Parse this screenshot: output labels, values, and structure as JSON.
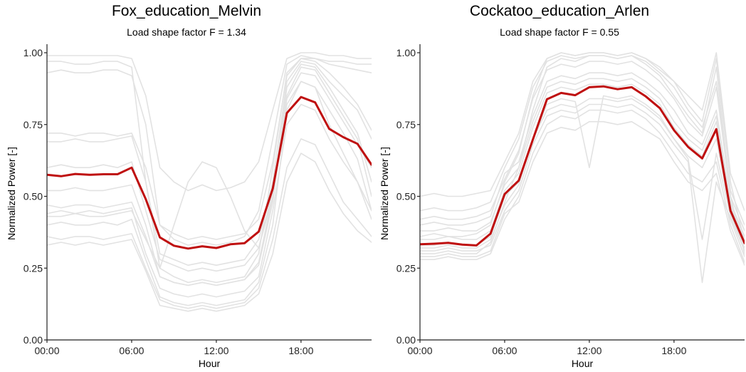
{
  "chart_data": [
    {
      "type": "line",
      "title": "Fox_education_Melvin",
      "subtitle": "Load shape factor F = 1.34",
      "xlabel": "Hour",
      "ylabel": "Normalized Power [-]",
      "xlim": [
        0,
        23
      ],
      "ylim": [
        0,
        1
      ],
      "x_ticks": [
        0,
        6,
        12,
        18
      ],
      "x_tick_labels": [
        "00:00",
        "06:00",
        "12:00",
        "18:00"
      ],
      "y_ticks": [
        0,
        0.25,
        0.5,
        0.75,
        1.0
      ],
      "y_tick_labels": [
        "0.00",
        "0.25",
        "0.50",
        "0.75",
        "1.00"
      ],
      "grid": false,
      "colors": {
        "mean": "#bf0f0f",
        "background": "#e2e2e2",
        "axis": "#222222"
      },
      "x": [
        0,
        1,
        2,
        3,
        4,
        5,
        6,
        7,
        8,
        9,
        10,
        11,
        12,
        13,
        14,
        15,
        16,
        17,
        18,
        19,
        20,
        21,
        22,
        23
      ],
      "series": [
        {
          "role": "mean",
          "values": [
            0.575,
            0.57,
            0.578,
            0.575,
            0.577,
            0.577,
            0.6,
            0.49,
            0.357,
            0.328,
            0.318,
            0.326,
            0.32,
            0.333,
            0.337,
            0.377,
            0.527,
            0.79,
            0.846,
            0.827,
            0.735,
            0.706,
            0.683,
            0.61
          ]
        },
        {
          "role": "background",
          "values": [
            0.97,
            0.97,
            0.96,
            0.96,
            0.97,
            0.97,
            0.95,
            0.55,
            0.25,
            0.22,
            0.2,
            0.21,
            0.2,
            0.21,
            0.22,
            0.3,
            0.6,
            0.93,
            0.98,
            0.98,
            0.97,
            0.97,
            0.96,
            0.96
          ]
        },
        {
          "role": "background",
          "values": [
            0.93,
            0.94,
            0.93,
            0.93,
            0.94,
            0.94,
            0.92,
            0.75,
            0.4,
            0.35,
            0.33,
            0.34,
            0.33,
            0.34,
            0.36,
            0.45,
            0.7,
            0.96,
            0.99,
            0.98,
            0.96,
            0.95,
            0.94,
            0.93
          ]
        },
        {
          "role": "background",
          "values": [
            0.44,
            0.45,
            0.44,
            0.45,
            0.44,
            0.45,
            0.46,
            0.3,
            0.18,
            0.16,
            0.15,
            0.16,
            0.15,
            0.16,
            0.17,
            0.22,
            0.45,
            0.75,
            0.82,
            0.8,
            0.7,
            0.62,
            0.55,
            0.45
          ]
        },
        {
          "role": "background",
          "values": [
            0.4,
            0.41,
            0.4,
            0.4,
            0.41,
            0.4,
            0.42,
            0.28,
            0.15,
            0.13,
            0.12,
            0.13,
            0.12,
            0.13,
            0.14,
            0.2,
            0.4,
            0.8,
            0.9,
            0.88,
            0.75,
            0.65,
            0.55,
            0.42
          ]
        },
        {
          "role": "background",
          "values": [
            0.47,
            0.46,
            0.47,
            0.47,
            0.46,
            0.47,
            0.48,
            0.36,
            0.22,
            0.2,
            0.19,
            0.2,
            0.19,
            0.2,
            0.21,
            0.26,
            0.48,
            0.85,
            0.95,
            0.94,
            0.86,
            0.78,
            0.7,
            0.5
          ]
        },
        {
          "role": "background",
          "values": [
            0.36,
            0.35,
            0.36,
            0.36,
            0.35,
            0.36,
            0.37,
            0.25,
            0.14,
            0.12,
            0.11,
            0.12,
            0.11,
            0.12,
            0.13,
            0.18,
            0.35,
            0.6,
            0.7,
            0.68,
            0.58,
            0.48,
            0.42,
            0.36
          ]
        },
        {
          "role": "background",
          "values": [
            0.69,
            0.69,
            0.7,
            0.69,
            0.69,
            0.7,
            0.71,
            0.55,
            0.3,
            0.28,
            0.26,
            0.27,
            0.26,
            0.27,
            0.28,
            0.35,
            0.55,
            0.9,
            0.97,
            0.96,
            0.9,
            0.85,
            0.8,
            0.7
          ]
        },
        {
          "role": "background",
          "values": [
            0.72,
            0.72,
            0.71,
            0.72,
            0.72,
            0.71,
            0.72,
            0.6,
            0.4,
            0.37,
            0.35,
            0.36,
            0.35,
            0.36,
            0.37,
            0.42,
            0.62,
            0.92,
            0.98,
            0.97,
            0.93,
            0.88,
            0.82,
            0.73
          ]
        },
        {
          "role": "background",
          "values": [
            0.52,
            0.52,
            0.53,
            0.52,
            0.52,
            0.53,
            0.54,
            0.4,
            0.22,
            0.2,
            0.19,
            0.2,
            0.19,
            0.2,
            0.21,
            0.27,
            0.5,
            0.88,
            0.96,
            0.95,
            0.88,
            0.8,
            0.72,
            0.55
          ]
        },
        {
          "role": "background",
          "values": [
            0.33,
            0.34,
            0.33,
            0.34,
            0.33,
            0.34,
            0.35,
            0.24,
            0.12,
            0.11,
            0.1,
            0.11,
            0.1,
            0.11,
            0.12,
            0.16,
            0.3,
            0.55,
            0.65,
            0.62,
            0.52,
            0.44,
            0.38,
            0.34
          ]
        },
        {
          "role": "background",
          "values": [
            0.43,
            0.43,
            0.44,
            0.43,
            0.43,
            0.44,
            0.45,
            0.35,
            0.25,
            0.4,
            0.55,
            0.62,
            0.6,
            0.5,
            0.38,
            0.32,
            0.5,
            0.82,
            0.9,
            0.88,
            0.8,
            0.72,
            0.63,
            0.45
          ]
        },
        {
          "role": "background",
          "values": [
            0.99,
            0.99,
            0.99,
            0.99,
            0.99,
            0.99,
            0.98,
            0.85,
            0.6,
            0.55,
            0.52,
            0.54,
            0.52,
            0.53,
            0.55,
            0.62,
            0.8,
            0.98,
            1.0,
            1.0,
            0.99,
            0.99,
            0.98,
            0.98
          ]
        },
        {
          "role": "background",
          "values": [
            0.6,
            0.61,
            0.6,
            0.6,
            0.61,
            0.6,
            0.62,
            0.45,
            0.28,
            0.26,
            0.24,
            0.25,
            0.24,
            0.25,
            0.26,
            0.32,
            0.52,
            0.84,
            0.93,
            0.92,
            0.84,
            0.76,
            0.68,
            0.6
          ]
        }
      ]
    },
    {
      "type": "line",
      "title": "Cockatoo_education_Arlen",
      "subtitle": "Load shape factor F = 0.55",
      "xlabel": "Hour",
      "ylabel": "Normalized Power [-]",
      "xlim": [
        0,
        23
      ],
      "ylim": [
        0,
        1
      ],
      "x_ticks": [
        0,
        6,
        12,
        18
      ],
      "x_tick_labels": [
        "00:00",
        "06:00",
        "12:00",
        "18:00"
      ],
      "y_ticks": [
        0,
        0.25,
        0.5,
        0.75,
        1.0
      ],
      "y_tick_labels": [
        "0.00",
        "0.25",
        "0.50",
        "0.75",
        "1.00"
      ],
      "grid": false,
      "colors": {
        "mean": "#bf0f0f",
        "background": "#e2e2e2",
        "axis": "#222222"
      },
      "x": [
        0,
        1,
        2,
        3,
        4,
        5,
        6,
        7,
        8,
        9,
        10,
        11,
        12,
        13,
        14,
        15,
        16,
        17,
        18,
        19,
        20,
        21,
        22,
        23
      ],
      "series": [
        {
          "role": "mean",
          "values": [
            0.333,
            0.335,
            0.338,
            0.332,
            0.329,
            0.37,
            0.508,
            0.555,
            0.698,
            0.838,
            0.86,
            0.852,
            0.88,
            0.883,
            0.873,
            0.88,
            0.848,
            0.807,
            0.73,
            0.672,
            0.632,
            0.734,
            0.45,
            0.337
          ]
        },
        {
          "role": "background",
          "values": [
            0.3,
            0.3,
            0.31,
            0.3,
            0.3,
            0.34,
            0.48,
            0.6,
            0.8,
            0.95,
            0.98,
            0.97,
            0.99,
            0.99,
            0.98,
            0.99,
            0.96,
            0.92,
            0.85,
            0.78,
            0.72,
            0.95,
            0.5,
            0.3
          ]
        },
        {
          "role": "background",
          "values": [
            0.36,
            0.37,
            0.36,
            0.36,
            0.37,
            0.4,
            0.55,
            0.65,
            0.85,
            0.98,
            1.0,
            0.99,
            1.0,
            1.0,
            0.99,
            1.0,
            0.98,
            0.95,
            0.9,
            0.82,
            0.76,
            0.98,
            0.55,
            0.34
          ]
        },
        {
          "role": "background",
          "values": [
            0.28,
            0.28,
            0.29,
            0.28,
            0.28,
            0.3,
            0.42,
            0.5,
            0.65,
            0.75,
            0.78,
            0.77,
            0.8,
            0.8,
            0.79,
            0.8,
            0.77,
            0.72,
            0.65,
            0.58,
            0.55,
            0.62,
            0.4,
            0.27
          ]
        },
        {
          "role": "background",
          "values": [
            0.4,
            0.41,
            0.4,
            0.4,
            0.41,
            0.43,
            0.58,
            0.62,
            0.78,
            0.9,
            0.92,
            0.91,
            0.93,
            0.93,
            0.92,
            0.93,
            0.9,
            0.86,
            0.8,
            0.72,
            0.68,
            0.8,
            0.48,
            0.36
          ]
        },
        {
          "role": "background",
          "values": [
            0.33,
            0.33,
            0.34,
            0.33,
            0.33,
            0.36,
            0.5,
            0.55,
            0.7,
            0.82,
            0.84,
            0.83,
            0.6,
            0.85,
            0.84,
            0.85,
            0.82,
            0.78,
            0.7,
            0.64,
            0.6,
            0.7,
            0.44,
            0.32
          ]
        },
        {
          "role": "background",
          "values": [
            0.45,
            0.46,
            0.45,
            0.45,
            0.46,
            0.48,
            0.6,
            0.7,
            0.88,
            0.97,
            0.99,
            0.98,
            0.99,
            0.99,
            0.98,
            0.99,
            0.97,
            0.93,
            0.88,
            0.8,
            0.74,
            0.9,
            0.52,
            0.4
          ]
        },
        {
          "role": "background",
          "values": [
            0.31,
            0.31,
            0.32,
            0.31,
            0.31,
            0.33,
            0.45,
            0.52,
            0.68,
            0.78,
            0.8,
            0.79,
            0.82,
            0.82,
            0.81,
            0.82,
            0.79,
            0.75,
            0.68,
            0.62,
            0.2,
            0.55,
            0.42,
            0.29
          ]
        },
        {
          "role": "background",
          "values": [
            0.5,
            0.51,
            0.5,
            0.5,
            0.51,
            0.52,
            0.62,
            0.72,
            0.9,
            0.98,
            1.0,
            0.99,
            1.0,
            1.0,
            0.99,
            1.0,
            0.98,
            0.94,
            0.9,
            0.85,
            0.8,
            1.0,
            0.58,
            0.45
          ]
        },
        {
          "role": "background",
          "values": [
            0.35,
            0.35,
            0.36,
            0.35,
            0.35,
            0.38,
            0.52,
            0.58,
            0.74,
            0.86,
            0.88,
            0.87,
            0.89,
            0.89,
            0.88,
            0.89,
            0.86,
            0.82,
            0.74,
            0.68,
            0.64,
            0.76,
            0.46,
            0.34
          ]
        },
        {
          "role": "background",
          "values": [
            0.29,
            0.29,
            0.3,
            0.29,
            0.29,
            0.31,
            0.44,
            0.48,
            0.62,
            0.72,
            0.74,
            0.73,
            0.76,
            0.76,
            0.75,
            0.76,
            0.73,
            0.7,
            0.62,
            0.55,
            0.52,
            0.58,
            0.38,
            0.26
          ]
        },
        {
          "role": "background",
          "values": [
            0.38,
            0.38,
            0.39,
            0.38,
            0.38,
            0.41,
            0.54,
            0.6,
            0.76,
            0.88,
            0.9,
            0.89,
            0.91,
            0.91,
            0.9,
            0.91,
            0.88,
            0.84,
            0.76,
            0.7,
            0.66,
            0.78,
            0.47,
            0.35
          ]
        },
        {
          "role": "background",
          "values": [
            0.42,
            0.43,
            0.42,
            0.42,
            0.43,
            0.45,
            0.56,
            0.66,
            0.84,
            0.94,
            0.96,
            0.95,
            0.97,
            0.97,
            0.96,
            0.97,
            0.94,
            0.9,
            0.84,
            0.76,
            0.71,
            0.88,
            0.5,
            0.38
          ]
        },
        {
          "role": "background",
          "values": [
            0.32,
            0.32,
            0.33,
            0.32,
            0.32,
            0.35,
            0.47,
            0.54,
            0.7,
            0.8,
            0.82,
            0.81,
            0.84,
            0.84,
            0.83,
            0.84,
            0.81,
            0.77,
            0.7,
            0.63,
            0.35,
            0.65,
            0.43,
            0.31
          ]
        }
      ]
    }
  ]
}
